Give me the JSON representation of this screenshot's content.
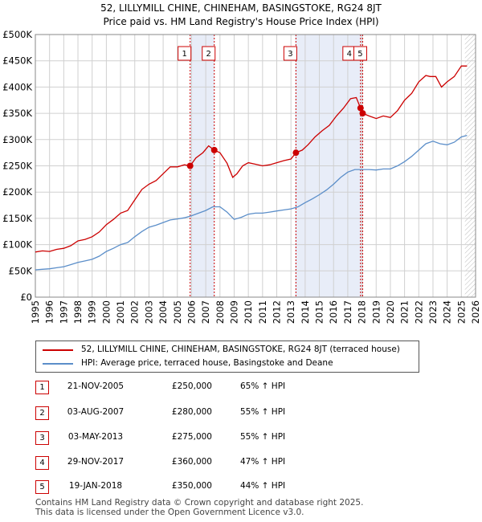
{
  "title_line1": "52, LILLYMILL CHINE, CHINEHAM, BASINGSTOKE, RG24 8JT",
  "title_line2": "Price paid vs. HM Land Registry's House Price Index (HPI)",
  "legend": {
    "red_label": "52, LILLYMILL CHINE, CHINEHAM, BASINGSTOKE, RG24 8JT (terraced house)",
    "blue_label": "HPI: Average price, terraced house, Basingstoke and Deane"
  },
  "sales": [
    {
      "num": "1",
      "date": "21-NOV-2005",
      "price": "£250,000",
      "hpi": "65% ↑ HPI"
    },
    {
      "num": "2",
      "date": "03-AUG-2007",
      "price": "£280,000",
      "hpi": "55% ↑ HPI"
    },
    {
      "num": "3",
      "date": "03-MAY-2013",
      "price": "£275,000",
      "hpi": "55% ↑ HPI"
    },
    {
      "num": "4",
      "date": "29-NOV-2017",
      "price": "£360,000",
      "hpi": "47% ↑ HPI"
    },
    {
      "num": "5",
      "date": "19-JAN-2018",
      "price": "£350,000",
      "hpi": "44% ↑ HPI"
    }
  ],
  "footer_line1": "Contains HM Land Registry data © Crown copyright and database right 2025.",
  "footer_line2": "This data is licensed under the Open Government Licence v3.0.",
  "colors": {
    "property": "#cc0000",
    "hpi": "#5b8ec9",
    "shade": "#e8edf8",
    "grid": "#d0d0d0"
  },
  "chart_data": {
    "type": "line",
    "title": "Price paid vs. HM Land Registry's House Price Index (HPI)",
    "xlabel": "",
    "ylabel": "",
    "xlim": [
      1995,
      2026
    ],
    "ylim": [
      0,
      500000
    ],
    "x_ticks": [
      1995,
      1996,
      1997,
      1998,
      1999,
      2000,
      2001,
      2002,
      2003,
      2004,
      2005,
      2006,
      2007,
      2008,
      2009,
      2010,
      2011,
      2012,
      2013,
      2014,
      2015,
      2016,
      2017,
      2018,
      2019,
      2020,
      2021,
      2022,
      2023,
      2024,
      2025,
      2026
    ],
    "y_ticks": [
      {
        "value": 0,
        "label": "£0"
      },
      {
        "value": 50000,
        "label": "£50K"
      },
      {
        "value": 100000,
        "label": "£100K"
      },
      {
        "value": 150000,
        "label": "£150K"
      },
      {
        "value": 200000,
        "label": "£200K"
      },
      {
        "value": 250000,
        "label": "£250K"
      },
      {
        "value": 300000,
        "label": "£300K"
      },
      {
        "value": 350000,
        "label": "£350K"
      },
      {
        "value": 400000,
        "label": "£400K"
      },
      {
        "value": 450000,
        "label": "£450K"
      },
      {
        "value": 500000,
        "label": "£500K"
      }
    ],
    "shaded_ranges": [
      [
        2005.9,
        2007.6
      ],
      [
        2013.3,
        2018.05
      ]
    ],
    "hatched_from": 2025.25,
    "series": [
      {
        "name": "52, LILLYMILL CHINE, CHINEHAM, BASINGSTOKE, RG24 8JT (terraced house)",
        "color": "#cc0000",
        "x": [
          1995,
          1995.5,
          1996,
          1996.5,
          1997,
          1997.5,
          1998,
          1998.5,
          1999,
          1999.5,
          2000,
          2000.5,
          2001,
          2001.5,
          2002,
          2002.5,
          2003,
          2003.5,
          2004,
          2004.5,
          2005,
          2005.5,
          2005.9,
          2006.3,
          2006.8,
          2007.2,
          2007.6,
          2008,
          2008.5,
          2008.9,
          2009.2,
          2009.6,
          2010,
          2010.5,
          2011,
          2011.5,
          2012,
          2012.5,
          2013,
          2013.35,
          2013.8,
          2014.2,
          2014.7,
          2015.2,
          2015.7,
          2016.2,
          2016.7,
          2017.2,
          2017.6,
          2017.9,
          2018.05,
          2018.5,
          2019,
          2019.5,
          2020,
          2020.5,
          2021,
          2021.5,
          2022,
          2022.5,
          2022.8,
          2023.2,
          2023.6,
          2024,
          2024.5,
          2025,
          2025.4
        ],
        "y": [
          86000,
          88000,
          87000,
          91000,
          93000,
          98000,
          107000,
          110000,
          115000,
          124000,
          138000,
          148000,
          160000,
          165000,
          185000,
          205000,
          215000,
          222000,
          235000,
          248000,
          248000,
          252000,
          250000,
          265000,
          275000,
          288000,
          280000,
          275000,
          255000,
          228000,
          235000,
          250000,
          256000,
          253000,
          250000,
          252000,
          256000,
          260000,
          263000,
          275000,
          280000,
          290000,
          305000,
          317000,
          327000,
          345000,
          360000,
          378000,
          380000,
          360000,
          350000,
          345000,
          340000,
          345000,
          342000,
          355000,
          375000,
          388000,
          410000,
          422000,
          420000,
          420000,
          400000,
          410000,
          420000,
          440000,
          440000
        ]
      },
      {
        "name": "HPI: Average price, terraced house, Basingstoke and Deane",
        "color": "#5b8ec9",
        "x": [
          1995,
          1995.5,
          1996,
          1996.5,
          1997,
          1997.5,
          1998,
          1998.5,
          1999,
          1999.5,
          2000,
          2000.5,
          2001,
          2001.5,
          2002,
          2002.5,
          2003,
          2003.5,
          2004,
          2004.5,
          2005,
          2005.5,
          2006,
          2006.5,
          2007,
          2007.5,
          2008,
          2008.5,
          2009,
          2009.5,
          2010,
          2010.5,
          2011,
          2011.5,
          2012,
          2012.5,
          2013,
          2013.5,
          2014,
          2014.5,
          2015,
          2015.5,
          2016,
          2016.5,
          2017,
          2017.5,
          2018,
          2018.5,
          2019,
          2019.5,
          2020,
          2020.5,
          2021,
          2021.5,
          2022,
          2022.5,
          2023,
          2023.5,
          2024,
          2024.5,
          2025,
          2025.4
        ],
        "y": [
          52000,
          53000,
          54000,
          56000,
          58000,
          62000,
          66000,
          69000,
          72000,
          78000,
          87000,
          93000,
          100000,
          104000,
          115000,
          125000,
          133000,
          137000,
          142000,
          147000,
          149000,
          151000,
          155000,
          160000,
          165000,
          172000,
          172000,
          162000,
          148000,
          152000,
          158000,
          160000,
          160000,
          162000,
          164000,
          166000,
          168000,
          172000,
          180000,
          187000,
          195000,
          204000,
          215000,
          228000,
          238000,
          243000,
          243000,
          243000,
          242000,
          244000,
          244000,
          250000,
          258000,
          268000,
          280000,
          292000,
          297000,
          292000,
          290000,
          295000,
          305000,
          308000
        ]
      }
    ],
    "sale_markers": [
      {
        "num": "1",
        "x": 2005.9,
        "y": 250000
      },
      {
        "num": "2",
        "x": 2007.6,
        "y": 280000
      },
      {
        "num": "3",
        "x": 2013.35,
        "y": 275000
      },
      {
        "num": "4",
        "x": 2017.9,
        "y": 360000
      },
      {
        "num": "5",
        "x": 2018.05,
        "y": 350000
      }
    ]
  }
}
